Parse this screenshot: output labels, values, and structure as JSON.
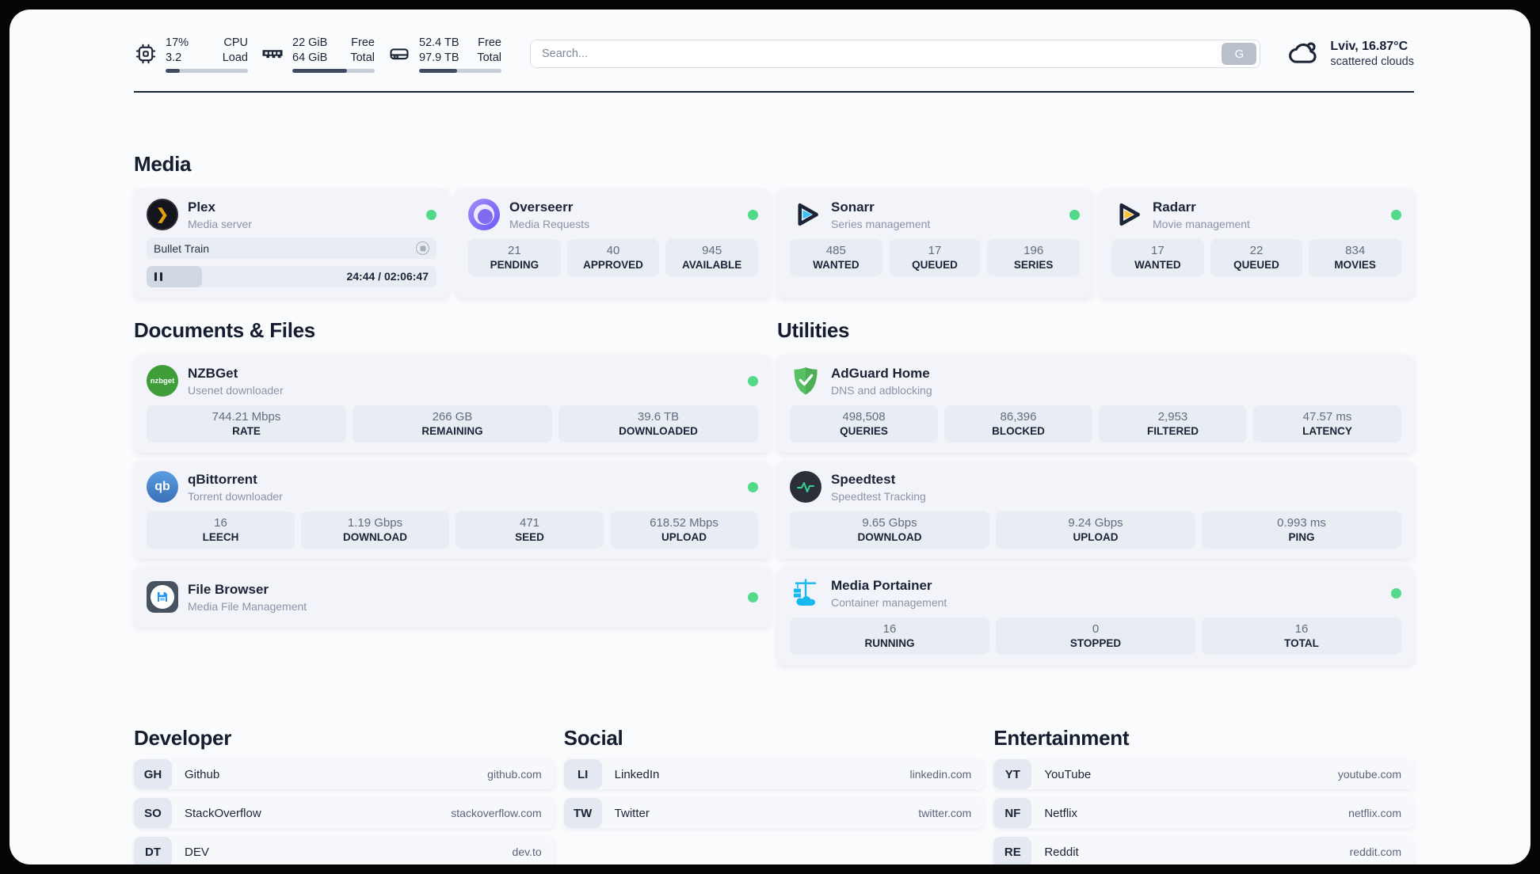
{
  "theme": {
    "page_bg": "#fafbfd",
    "card_bg": "#f2f4f9",
    "box_bg": "#e8ecf3",
    "green": "#53d98a",
    "navy": "#1b2437",
    "bar_fill": "#3f4b63",
    "bar_track": "#c9cfd9",
    "plex_orange": "#e5a00d",
    "sonarr_blue": "#35c5f4",
    "radarr_orange": "#ffc230",
    "nzbget_green": "#3f9e3a",
    "qbit_blue": "#4581c9",
    "adguard_green": "#58bf62",
    "speedtest_green": "#36d399",
    "portainer_blue": "#16b8f0",
    "filebrowser_blue": "#2196f3"
  },
  "header": {
    "stats": [
      {
        "icon": "cpu-icon",
        "values": [
          "17%",
          "3.2"
        ],
        "labels": [
          "CPU",
          "Load"
        ],
        "progress_pct": 17
      },
      {
        "icon": "memory-icon",
        "values": [
          "22 GiB",
          "64 GiB"
        ],
        "labels": [
          "Free",
          "Total"
        ],
        "progress_pct": 66
      },
      {
        "icon": "disk-icon",
        "values": [
          "52.4 TB",
          "97.9 TB"
        ],
        "labels": [
          "Free",
          "Total"
        ],
        "progress_pct": 46
      }
    ],
    "search": {
      "placeholder": "Search...",
      "button_label": "G"
    },
    "weather": {
      "location": "Lviv, 16.87°C",
      "condition": "scattered clouds"
    }
  },
  "sections": {
    "media": {
      "title": "Media",
      "plex": {
        "name": "Plex",
        "desc": "Media server",
        "online": true,
        "now_playing": "Bullet Train",
        "time": "24:44 / 02:06:47",
        "progress_pct": 19
      },
      "overseerr": {
        "name": "Overseerr",
        "desc": "Media Requests",
        "online": true,
        "stats": [
          {
            "value": "21",
            "label": "PENDING"
          },
          {
            "value": "40",
            "label": "APPROVED"
          },
          {
            "value": "945",
            "label": "AVAILABLE"
          }
        ]
      },
      "sonarr": {
        "name": "Sonarr",
        "desc": "Series management",
        "online": true,
        "stats": [
          {
            "value": "485",
            "label": "WANTED"
          },
          {
            "value": "17",
            "label": "QUEUED"
          },
          {
            "value": "196",
            "label": "SERIES"
          }
        ]
      },
      "radarr": {
        "name": "Radarr",
        "desc": "Movie management",
        "online": true,
        "stats": [
          {
            "value": "17",
            "label": "WANTED"
          },
          {
            "value": "22",
            "label": "QUEUED"
          },
          {
            "value": "834",
            "label": "MOVIES"
          }
        ]
      }
    },
    "documents": {
      "title": "Documents & Files",
      "nzbget": {
        "name": "NZBGet",
        "desc": "Usenet downloader",
        "badge": "nzbget",
        "online": true,
        "stats": [
          {
            "value": "744.21 Mbps",
            "label": "RATE"
          },
          {
            "value": "266 GB",
            "label": "REMAINING"
          },
          {
            "value": "39.6 TB",
            "label": "DOWNLOADED"
          }
        ]
      },
      "qbittorrent": {
        "name": "qBittorrent",
        "desc": "Torrent downloader",
        "badge": "qb",
        "online": true,
        "stats": [
          {
            "value": "16",
            "label": "LEECH"
          },
          {
            "value": "1.19 Gbps",
            "label": "DOWNLOAD"
          },
          {
            "value": "471",
            "label": "SEED"
          },
          {
            "value": "618.52 Mbps",
            "label": "UPLOAD"
          }
        ]
      },
      "filebrowser": {
        "name": "File Browser",
        "desc": "Media File Management",
        "online": true
      }
    },
    "utilities": {
      "title": "Utilities",
      "adguard": {
        "name": "AdGuard Home",
        "desc": "DNS and adblocking",
        "stats": [
          {
            "value": "498,508",
            "label": "QUERIES"
          },
          {
            "value": "86,396",
            "label": "BLOCKED"
          },
          {
            "value": "2,953",
            "label": "FILTERED"
          },
          {
            "value": "47.57 ms",
            "label": "LATENCY"
          }
        ]
      },
      "speedtest": {
        "name": "Speedtest",
        "desc": "Speedtest Tracking",
        "stats": [
          {
            "value": "9.65 Gbps",
            "label": "DOWNLOAD"
          },
          {
            "value": "9.24 Gbps",
            "label": "UPLOAD"
          },
          {
            "value": "0.993 ms",
            "label": "PING"
          }
        ]
      },
      "portainer": {
        "name": "Media Portainer",
        "desc": "Container management",
        "online": true,
        "stats": [
          {
            "value": "16",
            "label": "RUNNING"
          },
          {
            "value": "0",
            "label": "STOPPED"
          },
          {
            "value": "16",
            "label": "TOTAL"
          }
        ]
      }
    },
    "developer": {
      "title": "Developer",
      "links": [
        {
          "abbr": "GH",
          "name": "Github",
          "url": "github.com"
        },
        {
          "abbr": "SO",
          "name": "StackOverflow",
          "url": "stackoverflow.com"
        },
        {
          "abbr": "DT",
          "name": "DEV",
          "url": "dev.to"
        }
      ]
    },
    "social": {
      "title": "Social",
      "links": [
        {
          "abbr": "LI",
          "name": "LinkedIn",
          "url": "linkedin.com"
        },
        {
          "abbr": "TW",
          "name": "Twitter",
          "url": "twitter.com"
        }
      ]
    },
    "entertainment": {
      "title": "Entertainment",
      "links": [
        {
          "abbr": "YT",
          "name": "YouTube",
          "url": "youtube.com"
        },
        {
          "abbr": "NF",
          "name": "Netflix",
          "url": "netflix.com"
        },
        {
          "abbr": "RE",
          "name": "Reddit",
          "url": "reddit.com"
        }
      ]
    }
  }
}
